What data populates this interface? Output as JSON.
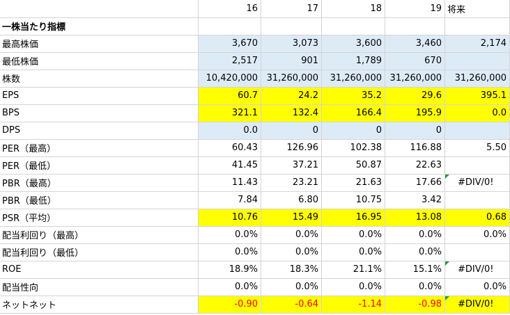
{
  "header": {
    "cols": [
      "16",
      "17",
      "18",
      "19",
      "将来"
    ]
  },
  "section_title": "一株当たり指標",
  "rows": [
    {
      "label": "最高株価",
      "values": [
        "3,670",
        "3,073",
        "3,600",
        "3,460",
        "2,174"
      ],
      "fill": "blue"
    },
    {
      "label": "最低株価",
      "values": [
        "2,517",
        "901",
        "1,789",
        "670",
        ""
      ],
      "fill": "blue"
    },
    {
      "label": "株数",
      "values": [
        "10,420,000",
        "31,260,000",
        "31,260,000",
        "31,260,000",
        "31,260,000"
      ],
      "fill": "blue"
    },
    {
      "label": "EPS",
      "values": [
        "60.7",
        "24.2",
        "35.2",
        "29.6",
        "395.1"
      ],
      "fill": "yellow"
    },
    {
      "label": "BPS",
      "values": [
        "321.1",
        "132.4",
        "166.4",
        "195.9",
        "0.0"
      ],
      "fill": "yellow"
    },
    {
      "label": "DPS",
      "values": [
        "0.0",
        "0",
        "0",
        "0",
        ""
      ],
      "fill": "blue"
    },
    {
      "label": "PER（最高）",
      "values": [
        "60.43",
        "126.96",
        "102.38",
        "116.88",
        "5.50"
      ],
      "fill": "none"
    },
    {
      "label": "PER（最低）",
      "values": [
        "41.45",
        "37.21",
        "50.87",
        "22.63",
        ""
      ],
      "fill": "none"
    },
    {
      "label": "PBR（最高）",
      "values": [
        "11.43",
        "23.21",
        "21.63",
        "17.66",
        "#DIV/0!"
      ],
      "fill": "none"
    },
    {
      "label": "PBR（最低）",
      "values": [
        "7.84",
        "6.80",
        "10.75",
        "3.42",
        ""
      ],
      "fill": "none"
    },
    {
      "label": "PSR（平均）",
      "values": [
        "10.76",
        "15.49",
        "16.95",
        "13.08",
        "0.68"
      ],
      "fill": "yellow"
    },
    {
      "label": "配当利回り（最高）",
      "values": [
        "0.0%",
        "0.0%",
        "0.0%",
        "0.0%",
        "0.0%"
      ],
      "fill": "none"
    },
    {
      "label": "配当利回り（最低）",
      "values": [
        "0.0%",
        "0.0%",
        "0.0%",
        "0.0%",
        ""
      ],
      "fill": "none"
    },
    {
      "label": "ROE",
      "values": [
        "18.9%",
        "18.3%",
        "21.1%",
        "15.1%",
        "#DIV/0!"
      ],
      "fill": "none"
    },
    {
      "label": "配当性向",
      "values": [
        "0.0%",
        "0.0%",
        "0.0%",
        "0.0%",
        "0.0%"
      ],
      "fill": "none"
    },
    {
      "label": "ネットネット",
      "values": [
        "-0.90",
        "-0.64",
        "-1.14",
        "-0.98",
        "#DIV/0!"
      ],
      "fill": "yellow",
      "negative": true
    }
  ],
  "colors": {
    "blue_fill": "#ddebf7",
    "yellow_fill": "#ffff00",
    "negative_text": "#ff0000",
    "gridline": "#d4d4d4",
    "error_marker": "#1f9e38"
  }
}
